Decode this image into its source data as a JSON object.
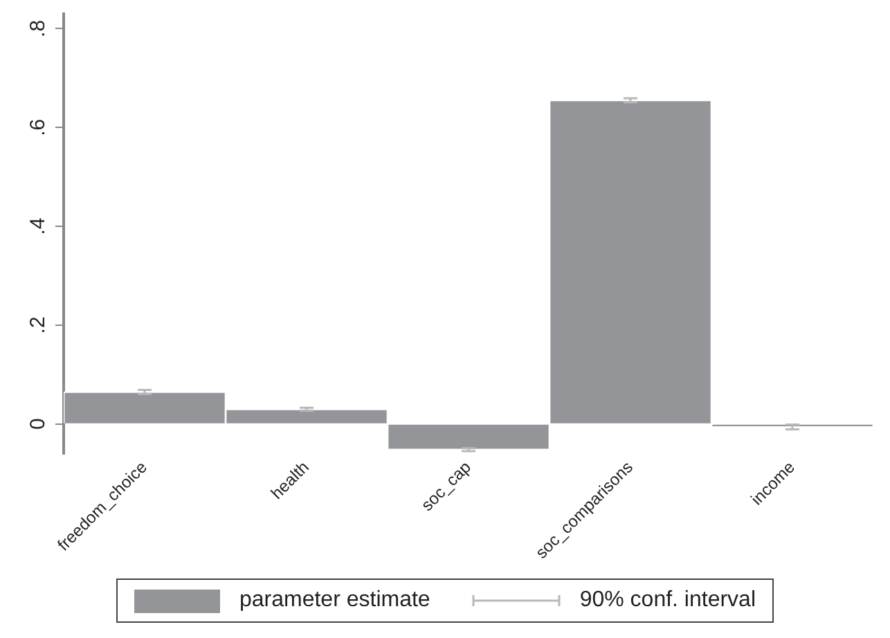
{
  "chart_data": {
    "type": "bar",
    "categories": [
      "freedom_choice",
      "health",
      "soc_cap",
      "soc_comparisons",
      "income"
    ],
    "series": [
      {
        "name": "parameter estimate",
        "color": "#939598",
        "values": [
          0.065,
          0.03,
          -0.052,
          0.655,
          -0.006
        ],
        "errors": [
          0.004,
          0.003,
          0.003,
          0.004,
          0.005
        ]
      }
    ],
    "ylim": [
      -0.06,
      0.83
    ],
    "yticks": [
      {
        "value": 0,
        "label": "0"
      },
      {
        "value": 0.2,
        "label": ".2"
      },
      {
        "value": 0.4,
        "label": ".4"
      },
      {
        "value": 0.6,
        "label": ".6"
      },
      {
        "value": 0.8,
        "label": ".8"
      }
    ],
    "grid": false,
    "legend": "bottom",
    "annotations": [
      "90% conf. interval"
    ]
  }
}
